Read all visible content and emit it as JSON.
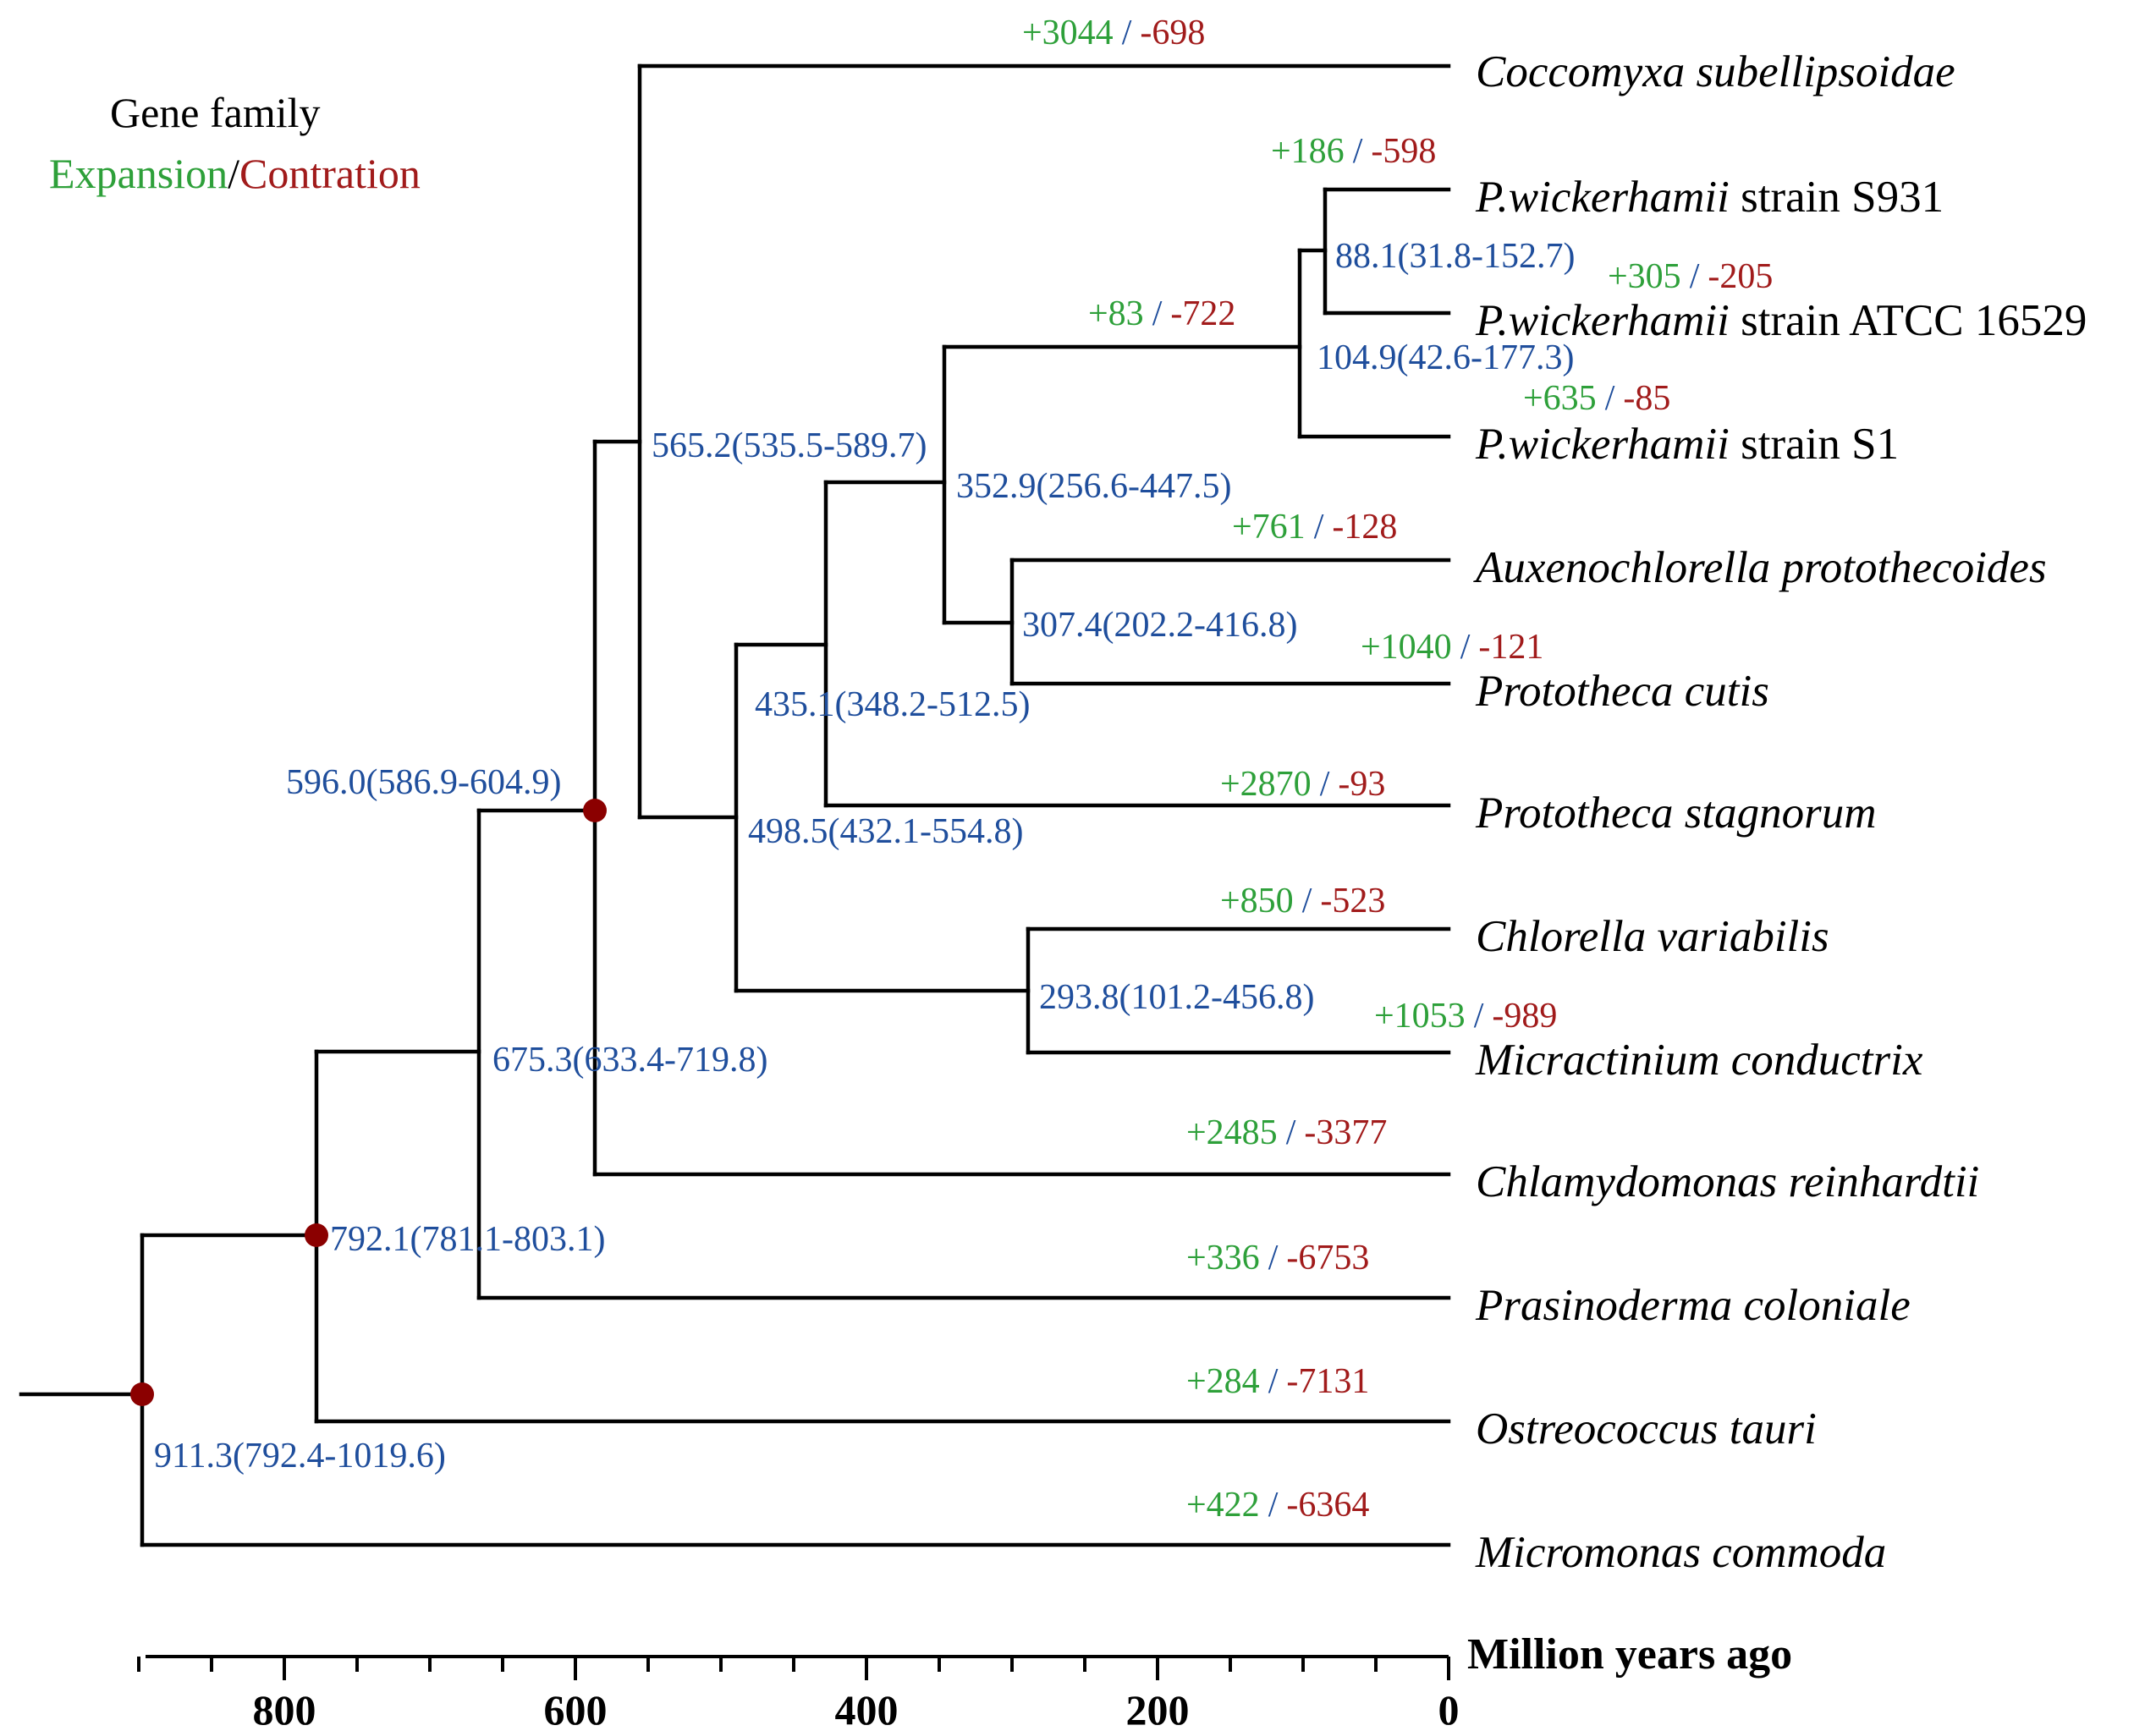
{
  "legend": {
    "title": "Gene family",
    "expansion": "Expansion",
    "separator": "/",
    "contraction": "Contration"
  },
  "colors": {
    "expansion": "#2ea03a",
    "contraction": "#a11b1b",
    "age": "#1f4e9c",
    "calibration_node": "#8b0000"
  },
  "taxa": [
    {
      "id": "coccomyxa",
      "italic": "Coccomyxa subellipsoidae",
      "plain": "",
      "expansion": "+3044",
      "contraction": "-698"
    },
    {
      "id": "s931",
      "italic": "P.wickerhamii",
      "plain": " strain S931",
      "expansion": "+186",
      "contraction": "-598"
    },
    {
      "id": "atcc",
      "italic": "P.wickerhamii",
      "plain": " strain ATCC 16529",
      "expansion": "+305",
      "contraction": "-205"
    },
    {
      "id": "s1",
      "italic": "P.wickerhamii",
      "plain": " strain S1",
      "expansion": "+635",
      "contraction": "-85"
    },
    {
      "id": "auxeno",
      "italic": "Auxenochlorella protothecoides",
      "plain": "",
      "expansion": "+761",
      "contraction": "-128"
    },
    {
      "id": "cutis",
      "italic": "Prototheca cutis",
      "plain": "",
      "expansion": "+1040",
      "contraction": "-121"
    },
    {
      "id": "stagnorum",
      "italic": "Prototheca stagnorum",
      "plain": "",
      "expansion": "+2870",
      "contraction": "-93"
    },
    {
      "id": "chlorella",
      "italic": "Chlorella variabilis",
      "plain": "",
      "expansion": "+850",
      "contraction": "-523"
    },
    {
      "id": "micractinium",
      "italic": "Micractinium conductrix",
      "plain": "",
      "expansion": "+1053",
      "contraction": "-989"
    },
    {
      "id": "chlamydomonas",
      "italic": "Chlamydomonas reinhardtii",
      "plain": "",
      "expansion": "+2485",
      "contraction": "-3377"
    },
    {
      "id": "prasinoderma",
      "italic": "Prasinoderma coloniale",
      "plain": "",
      "expansion": "+336",
      "contraction": "-6753"
    },
    {
      "id": "ostreococcus",
      "italic": "Ostreococcus tauri",
      "plain": "",
      "expansion": "+284",
      "contraction": "-7131"
    },
    {
      "id": "micromonas",
      "italic": "Micromonas commoda",
      "plain": "",
      "expansion": "+422",
      "contraction": "-6364"
    }
  ],
  "internal_nodes": [
    {
      "id": "n_s931_atcc",
      "age_label": "88.1(31.8-152.7)",
      "expansion": "",
      "contraction": ""
    },
    {
      "id": "n_wick",
      "age_label": "104.9(42.6-177.3)",
      "expansion": "+83",
      "contraction": "-722"
    },
    {
      "id": "n_aux_cutis",
      "age_label": "307.4(202.2-416.8)",
      "expansion": "",
      "contraction": ""
    },
    {
      "id": "n_wick_aux",
      "age_label": "352.9(256.6-447.5)",
      "expansion": "",
      "contraction": ""
    },
    {
      "id": "n_proto",
      "age_label": "435.1(348.2-512.5)",
      "expansion": "",
      "contraction": ""
    },
    {
      "id": "n_chlor_micr",
      "age_label": "293.8(101.2-456.8)",
      "expansion": "",
      "contraction": ""
    },
    {
      "id": "n_trebouxio",
      "age_label": "498.5(432.1-554.8)",
      "expansion": "",
      "contraction": ""
    },
    {
      "id": "n_cocco",
      "age_label": "565.2(535.5-589.7)",
      "expansion": "",
      "contraction": ""
    },
    {
      "id": "n_chlamy",
      "age_label": "596.0(586.9-604.9)",
      "expansion": "",
      "contraction": "",
      "calibrated": true
    },
    {
      "id": "n_prasino",
      "age_label": "675.3(633.4-719.8)",
      "expansion": "",
      "contraction": ""
    },
    {
      "id": "n_ostreo",
      "age_label": "792.1(781.1-803.1)",
      "expansion": "",
      "contraction": "",
      "calibrated": true
    },
    {
      "id": "n_root",
      "age_label": "911.3(792.4-1019.6)",
      "expansion": "",
      "contraction": "",
      "calibrated": true
    }
  ],
  "axis": {
    "title": "Million years ago",
    "ticks": [
      800,
      600,
      400,
      200,
      0
    ],
    "minor_step": 50,
    "range_mya": [
      925,
      0
    ]
  }
}
